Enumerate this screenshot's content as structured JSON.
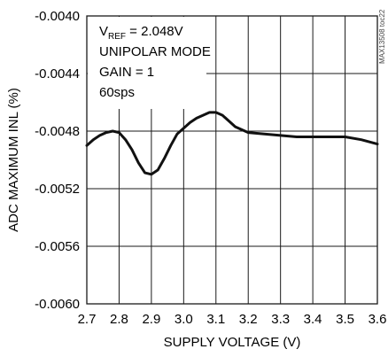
{
  "chart_data": {
    "type": "line",
    "title": "",
    "xlabel": "SUPPLY VOLTAGE (V)",
    "ylabel": "ADC MAXIMUM INL (%)",
    "xlim": [
      2.7,
      3.6
    ],
    "ylim": [
      -0.006,
      -0.004
    ],
    "x_ticks": [
      2.7,
      2.8,
      2.9,
      3.0,
      3.1,
      3.2,
      3.3,
      3.4,
      3.5,
      3.6
    ],
    "x_tick_labels": [
      "2.7",
      "2.8",
      "2.9",
      "3.0",
      "3.1",
      "3.2",
      "3.3",
      "3.4",
      "3.5",
      "3.6"
    ],
    "y_ticks": [
      -0.004,
      -0.0044,
      -0.0048,
      -0.0052,
      -0.0056,
      -0.006
    ],
    "y_tick_labels": [
      "-0.0040",
      "-0.0044",
      "-0.0048",
      "-0.0052",
      "-0.0056",
      "-0.0060"
    ],
    "grid": true,
    "legend": "none",
    "line_color": "#111111",
    "annotations": [
      {
        "main": "V",
        "sub": "REF",
        "tail": " = 2.048V"
      },
      {
        "main": "UNIPOLAR MODE"
      },
      {
        "main": "GAIN = 1"
      },
      {
        "main": "60sps"
      }
    ],
    "watermark": "MAX13508 toc22",
    "series": [
      {
        "x": [
          2.7,
          2.72,
          2.74,
          2.76,
          2.78,
          2.8,
          2.82,
          2.84,
          2.86,
          2.88,
          2.9,
          2.92,
          2.94,
          2.96,
          2.98,
          3.0,
          3.02,
          3.04,
          3.06,
          3.08,
          3.1,
          3.12,
          3.14,
          3.16,
          3.18,
          3.2,
          3.25,
          3.3,
          3.35,
          3.4,
          3.45,
          3.5,
          3.55,
          3.6
        ],
        "y": [
          -0.0049,
          -0.00486,
          -0.00483,
          -0.00481,
          -0.0048,
          -0.00481,
          -0.00486,
          -0.00493,
          -0.00502,
          -0.00509,
          -0.0051,
          -0.00507,
          -0.00499,
          -0.0049,
          -0.00482,
          -0.00478,
          -0.00474,
          -0.00471,
          -0.00469,
          -0.00467,
          -0.00467,
          -0.00469,
          -0.00473,
          -0.00477,
          -0.00479,
          -0.00481,
          -0.00482,
          -0.00483,
          -0.00484,
          -0.00484,
          -0.00484,
          -0.00484,
          -0.00486,
          -0.00489
        ]
      }
    ]
  }
}
